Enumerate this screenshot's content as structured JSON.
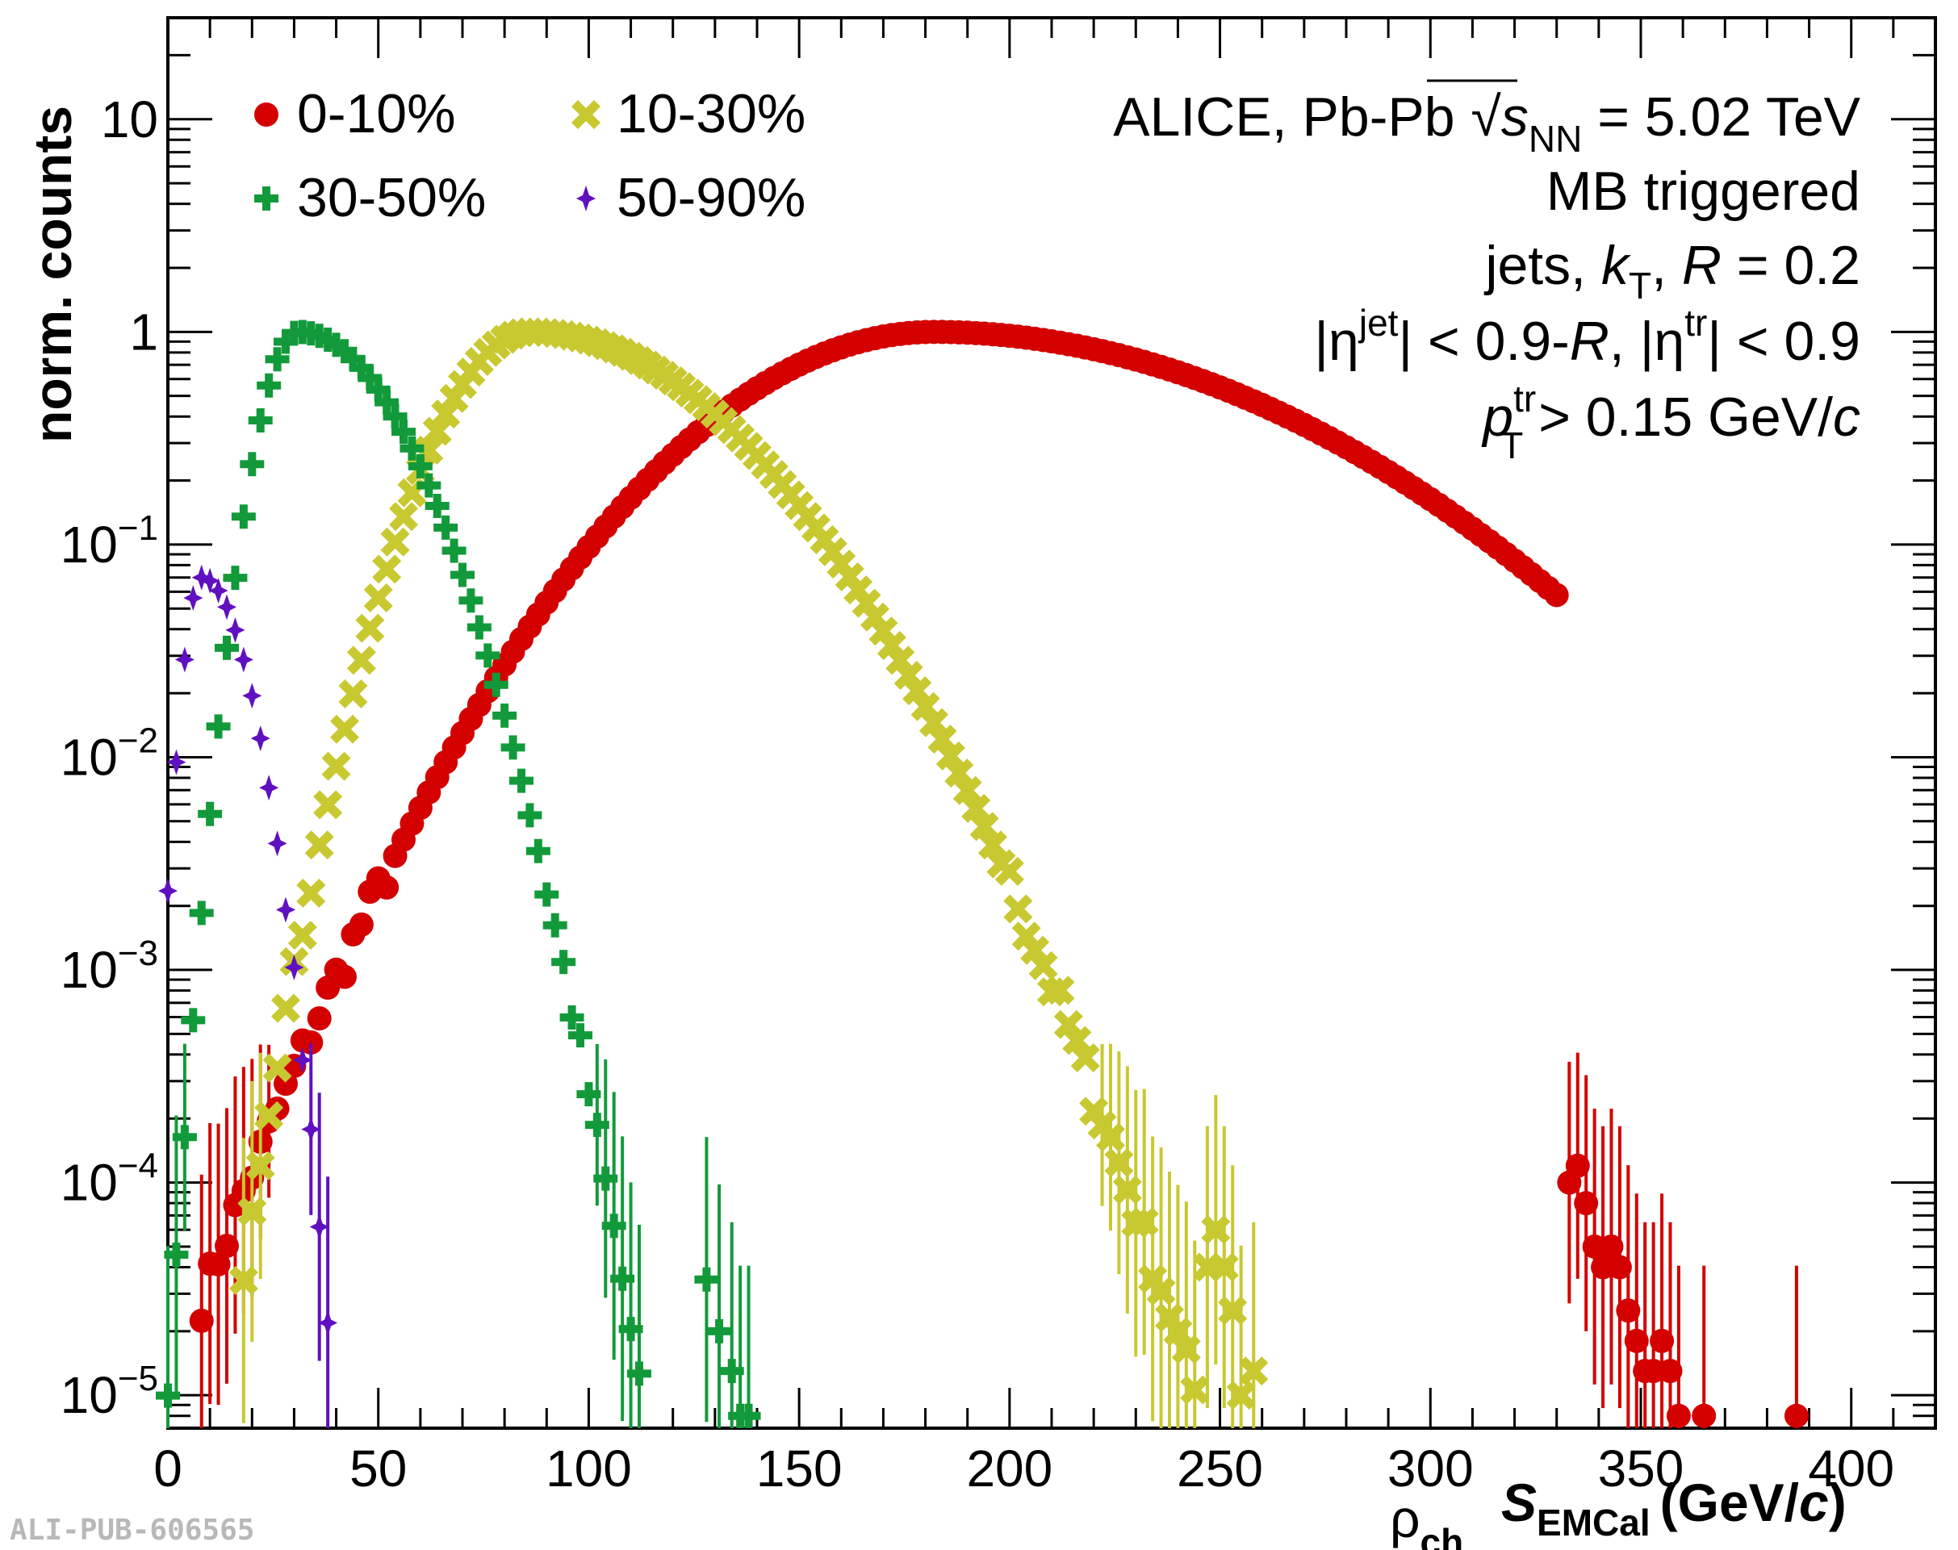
{
  "chart_data": {
    "type": "scatter",
    "title": "",
    "ylabel": "norm. counts",
    "xlabel": {
      "rho": "ρ",
      "rho_sub": "ch",
      "s": "S",
      "s_sub": "EMCal",
      "unit_pre": "(GeV/",
      "unit_c": "c",
      "unit_post": ")"
    },
    "xlim": [
      0,
      420
    ],
    "ylim": [
      7e-06,
      30
    ],
    "yscale": "log",
    "xticks": [
      "0",
      "50",
      "100",
      "150",
      "200",
      "250",
      "300",
      "350",
      "400"
    ],
    "yticks": [
      {
        "base": "10",
        "exp": "−5"
      },
      {
        "base": "10",
        "exp": "−4"
      },
      {
        "base": "10",
        "exp": "−3"
      },
      {
        "base": "10",
        "exp": "−2"
      },
      {
        "base": "10",
        "exp": "−1"
      },
      {
        "base": "1",
        "exp": ""
      },
      {
        "base": "10",
        "exp": ""
      }
    ],
    "grid": false,
    "legend_position": "top-left",
    "annotations": {
      "line1_prefix": "ALICE, Pb-Pb",
      "line1_s": "s",
      "line1_sub": "NN",
      "line1_suffix": " = 5.02 TeV",
      "line2": "MB triggered",
      "line3_a": "jets, ",
      "line3_k": "k",
      "line3_ksub": "T",
      "line3_b": ", ",
      "line3_R": "R",
      "line3_c": " = 0.2",
      "line4_a": "|η",
      "line4_sup1": "jet",
      "line4_b": "| < 0.9-",
      "line4_R": "R",
      "line4_c": ", |η",
      "line4_sup2": "tr",
      "line4_d": "| < 0.9",
      "line5_p": "p",
      "line5_sup": "tr",
      "line5_sub": "T",
      "line5_a": " > 0.15 GeV/",
      "line5_c": "c"
    },
    "watermark": "ALI-PUB-606565",
    "series": [
      {
        "name": "0-10%",
        "color": "#d40000",
        "marker": "circle",
        "centre": 182,
        "sigma_left": 38,
        "sigma_right": 62,
        "xmin": 8,
        "xmax": 330,
        "tail_points": [
          [
            333,
            0.0001
          ],
          [
            335,
            0.00012
          ],
          [
            337,
            8e-05
          ],
          [
            339,
            5e-05
          ],
          [
            341,
            4e-05
          ],
          [
            343,
            5e-05
          ],
          [
            345,
            4e-05
          ],
          [
            347,
            2.5e-05
          ],
          [
            349,
            1.8e-05
          ],
          [
            351,
            1.3e-05
          ],
          [
            353,
            1.3e-05
          ],
          [
            355,
            1.8e-05
          ],
          [
            357,
            1.3e-05
          ],
          [
            359,
            8e-06
          ],
          [
            365,
            8e-06
          ],
          [
            387,
            8e-06
          ]
        ]
      },
      {
        "name": "10-30%",
        "color": "#c8c830",
        "marker": "x",
        "centre": 86,
        "sigma_left": 15,
        "sigma_right": 33,
        "xmin": 18,
        "xmax": 245,
        "tail_points": [
          [
            247,
            4e-05
          ],
          [
            249,
            6e-05
          ],
          [
            251,
            4e-05
          ],
          [
            253,
            2.5e-05
          ],
          [
            255,
            1e-05
          ],
          [
            258,
            1.3e-05
          ]
        ]
      },
      {
        "name": "30-50%",
        "color": "#129a3a",
        "marker": "cross",
        "centre": 31,
        "sigma_left": 6.5,
        "sigma_right": 17,
        "xmin": 0,
        "xmax": 126,
        "tail_points": [
          [
            128,
            3.5e-05
          ],
          [
            131,
            2e-05
          ],
          [
            134,
            1.3e-05
          ],
          [
            136,
            8e-06
          ],
          [
            138,
            8e-06
          ]
        ]
      },
      {
        "name": "50-90%",
        "color": "#6010c0",
        "marker": "star",
        "centre": 8,
        "sigma_left": 3,
        "sigma_right": 7.5,
        "peak": 0.07,
        "xmin": 0,
        "xmax": 52,
        "tail_points": []
      }
    ]
  }
}
